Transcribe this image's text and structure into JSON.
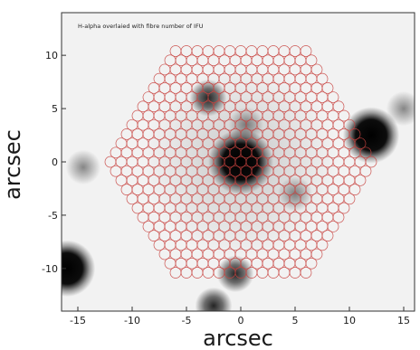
{
  "figure": {
    "overlay_caption": "H-alpha overlaied with fibre number of IFU",
    "x_axis_title": "arcsec",
    "y_axis_title": "arcsec",
    "x_ticks": [
      "-15",
      "-10",
      "-5",
      "0",
      "5",
      "10",
      "15"
    ],
    "y_ticks": [
      "10",
      "5",
      "0",
      "-5",
      "-10"
    ],
    "x_range": [
      -16.5,
      16
    ],
    "y_range": [
      -14,
      14
    ],
    "colors": {
      "background": "#f2f2f2",
      "fibre_outline": "#c8423f",
      "frame": "#333333",
      "source": "#000000"
    },
    "sources": [
      {
        "name": "central-galaxy-core",
        "x": 0,
        "y": 0,
        "strength": "bright"
      },
      {
        "name": "source-upper-left",
        "x": -3,
        "y": 6,
        "strength": "medium"
      },
      {
        "name": "source-near-core-above",
        "x": 0.5,
        "y": 3.5,
        "strength": "faint"
      },
      {
        "name": "source-right-edge",
        "x": 12,
        "y": 2.5,
        "strength": "bright"
      },
      {
        "name": "source-lower-left-corner",
        "x": -16,
        "y": -10,
        "strength": "bright"
      },
      {
        "name": "source-bottom-center",
        "x": -0.5,
        "y": -10.5,
        "strength": "medium"
      },
      {
        "name": "source-bottom-edge",
        "x": -2.5,
        "y": -13.5,
        "strength": "medium"
      },
      {
        "name": "source-left-faint",
        "x": -14.5,
        "y": -0.5,
        "strength": "faint"
      },
      {
        "name": "source-upper-right-faint",
        "x": 15,
        "y": 5,
        "strength": "faint"
      },
      {
        "name": "source-lower-right-faint",
        "x": 5,
        "y": -3,
        "strength": "faint"
      }
    ],
    "ifu": {
      "center": [
        0,
        0
      ],
      "fibre_rows": 25,
      "fibre_pitch_arcsec": 1.0
    }
  }
}
